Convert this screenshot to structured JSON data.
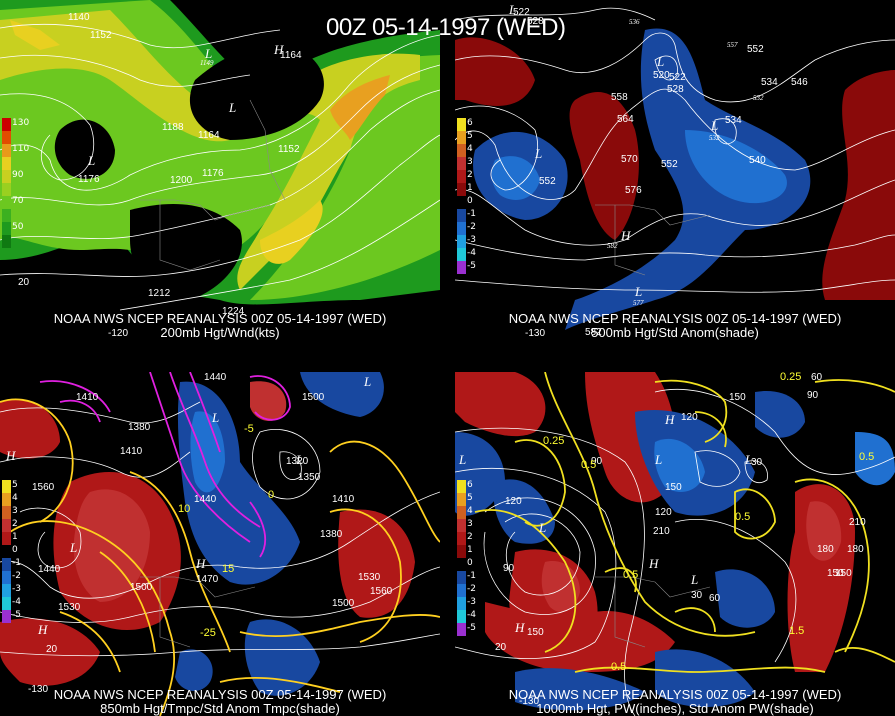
{
  "title": "00Z 05-14-1997 (WED)",
  "panels": [
    {
      "caption1": "NOAA NWS NCEP REANALYSIS 00Z 05-14-1997 (WED)",
      "caption2": "200mb Hgt/Wnd(kts)",
      "legend": [
        {
          "label": "130",
          "color": "#cc0000"
        },
        {
          "label": "",
          "color": "#e24c00"
        },
        {
          "label": "110",
          "color": "#e89a1a"
        },
        {
          "label": "",
          "color": "#e8d020"
        },
        {
          "label": "90",
          "color": "#c8d020"
        },
        {
          "label": "",
          "color": "#9ad020"
        },
        {
          "label": "70",
          "color": "#6cc820"
        },
        {
          "label": "",
          "color": "#3cb020"
        },
        {
          "label": "50",
          "color": "#1e9a1e"
        },
        {
          "label": "",
          "color": "#0f7a12"
        }
      ],
      "labels": [
        "1140",
        "1152",
        "1164",
        "1149",
        "1176",
        "1188",
        "1164",
        "1152",
        "1200",
        "1176",
        "1212",
        "1224",
        "20",
        "-120"
      ]
    },
    {
      "caption1": "NOAA NWS NCEP REANALYSIS 00Z 05-14-1997 (WED)",
      "caption2": "500mb Hgt/Std Anom(shade)",
      "legend": [
        {
          "label": "6",
          "color": "#f0e020"
        },
        {
          "label": "5",
          "color": "#e8a020"
        },
        {
          "label": "4",
          "color": "#d06020"
        },
        {
          "label": "3",
          "color": "#c03030"
        },
        {
          "label": "2",
          "color": "#b01818"
        },
        {
          "label": "1",
          "color": "#8a0a0a"
        },
        {
          "label": "0",
          "color": "#000000"
        },
        {
          "label": "-1",
          "color": "#1848a0"
        },
        {
          "label": "-2",
          "color": "#2070d0"
        },
        {
          "label": "-3",
          "color": "#20a0e0"
        },
        {
          "label": "-4",
          "color": "#20c8d8"
        },
        {
          "label": "-5",
          "color": "#9a30d0"
        }
      ],
      "labels": [
        "522",
        "528",
        "520",
        "522",
        "528",
        "536",
        "557",
        "552",
        "534",
        "546",
        "532",
        "558",
        "564",
        "534",
        "570",
        "552",
        "540",
        "552",
        "576",
        "532",
        "582",
        "577",
        "582",
        "-130"
      ]
    },
    {
      "caption1": "NOAA NWS NCEP REANALYSIS 00Z 05-14-1997 (WED)",
      "caption2": "850mb Hgt/Tmpc/Std Anom Tmpc(shade)",
      "legend": [
        {
          "label": "5",
          "color": "#f0e020"
        },
        {
          "label": "4",
          "color": "#e8a020"
        },
        {
          "label": "3",
          "color": "#d06020"
        },
        {
          "label": "2",
          "color": "#c03030"
        },
        {
          "label": "1",
          "color": "#b01818"
        },
        {
          "label": "0",
          "color": "#000000"
        },
        {
          "label": "-1",
          "color": "#1848a0"
        },
        {
          "label": "-2",
          "color": "#2070d0"
        },
        {
          "label": "-3",
          "color": "#20a0e0"
        },
        {
          "label": "-4",
          "color": "#20c8d8"
        },
        {
          "label": "-5",
          "color": "#9a30d0"
        }
      ],
      "labels": [
        "1440",
        "1410",
        "1500",
        "1380",
        "1320",
        "1410",
        "1560",
        "1350",
        "1440",
        "1410",
        "1380",
        "1470",
        "1530",
        "1560",
        "1500",
        "1530",
        "1500",
        "1440",
        "-130",
        "20",
        "10",
        "15",
        "-25",
        "-5",
        "0"
      ]
    },
    {
      "caption1": "NOAA NWS NCEP REANALYSIS 00Z 05-14-1997 (WED)",
      "caption2": "1000mb Hgt, PW(inches), Std Anom PW(shade)",
      "legend": [
        {
          "label": "6",
          "color": "#f0e020"
        },
        {
          "label": "5",
          "color": "#e8a020"
        },
        {
          "label": "4",
          "color": "#d06020"
        },
        {
          "label": "3",
          "color": "#c03030"
        },
        {
          "label": "2",
          "color": "#b01818"
        },
        {
          "label": "1",
          "color": "#8a0a0a"
        },
        {
          "label": "0",
          "color": "#000000"
        },
        {
          "label": "-1",
          "color": "#1848a0"
        },
        {
          "label": "-2",
          "color": "#2070d0"
        },
        {
          "label": "-3",
          "color": "#20a0e0"
        },
        {
          "label": "-4",
          "color": "#20c8d8"
        },
        {
          "label": "-5",
          "color": "#9a30d0"
        }
      ],
      "labels": [
        "60",
        "90",
        "150",
        "0.25",
        "0.5",
        "210",
        "180",
        "150",
        "90",
        "120",
        "30",
        "150",
        "0.5",
        "120",
        "210",
        "120",
        "180",
        "150",
        "90",
        "0.5",
        "60",
        "0.5",
        "1.5",
        "-130",
        "20",
        "0.25",
        "0.5",
        "30",
        "150"
      ]
    }
  ]
}
